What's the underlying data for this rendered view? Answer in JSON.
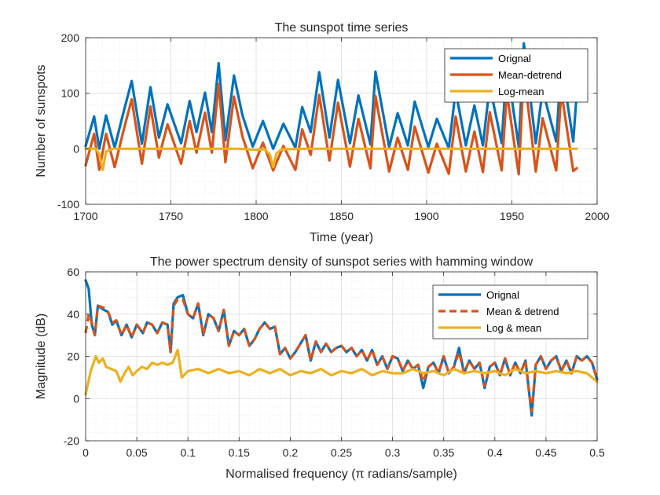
{
  "chart_data": [
    {
      "type": "line",
      "title": "The sunspot time series",
      "xlabel": "Time (year)",
      "ylabel": "Number of sunspots",
      "xlim": [
        1700,
        2000
      ],
      "ylim": [
        -100,
        200
      ],
      "xticks": [
        1700,
        1750,
        1800,
        1850,
        1900,
        1950,
        2000
      ],
      "yticks": [
        -100,
        0,
        100,
        200
      ],
      "xtick_labels": [
        "1700",
        "1750",
        "1800",
        "1850",
        "1900",
        "1950",
        "2000"
      ],
      "ytick_labels": [
        "-100",
        "0",
        "100",
        "200"
      ],
      "grid": true,
      "minor_grid": true,
      "legend_position": "top-right",
      "series": [
        {
          "name": "Orignal",
          "color": "#0072BD",
          "x": [
            1700,
            1705,
            1708,
            1712,
            1717,
            1722,
            1727,
            1733,
            1738,
            1743,
            1748,
            1752,
            1756,
            1761,
            1765,
            1770,
            1774,
            1778,
            1782,
            1787,
            1792,
            1798,
            1804,
            1810,
            1816,
            1823,
            1827,
            1832,
            1837,
            1843,
            1848,
            1855,
            1860,
            1867,
            1870,
            1878,
            1883,
            1889,
            1893,
            1901,
            1906,
            1913,
            1917,
            1923,
            1928,
            1933,
            1937,
            1944,
            1947,
            1954,
            1957,
            1964,
            1968,
            1976,
            1979,
            1986,
            1988
          ],
          "y": [
            5,
            58,
            0,
            60,
            2,
            63,
            122,
            9,
            111,
            20,
            80,
            45,
            10,
            86,
            30,
            101,
            30,
            154,
            15,
            132,
            60,
            4,
            50,
            0,
            45,
            2,
            75,
            30,
            138,
            20,
            124,
            10,
            96,
            8,
            139,
            3,
            64,
            6,
            85,
            3,
            54,
            1,
            104,
            6,
            78,
            6,
            114,
            10,
            151,
            4,
            190,
            10,
            106,
            13,
            155,
            13,
            100
          ]
        },
        {
          "name": "Mean-detrend",
          "color": "#D95319",
          "x": [
            1700,
            1705,
            1708,
            1712,
            1717,
            1722,
            1727,
            1733,
            1738,
            1743,
            1748,
            1752,
            1756,
            1761,
            1765,
            1770,
            1774,
            1778,
            1782,
            1787,
            1792,
            1798,
            1804,
            1810,
            1816,
            1823,
            1827,
            1832,
            1837,
            1843,
            1848,
            1855,
            1860,
            1867,
            1870,
            1878,
            1883,
            1889,
            1893,
            1901,
            1906,
            1913,
            1917,
            1923,
            1928,
            1933,
            1937,
            1944,
            1947,
            1954,
            1957,
            1964,
            1968,
            1976,
            1979,
            1986,
            1988
          ],
          "y": [
            -30,
            27,
            -38,
            27,
            -33,
            30,
            89,
            -27,
            76,
            -16,
            44,
            9,
            -27,
            50,
            -7,
            65,
            -7,
            117,
            -24,
            94,
            22,
            -35,
            11,
            -39,
            5,
            -38,
            35,
            -11,
            97,
            -21,
            83,
            -32,
            54,
            -35,
            95,
            -41,
            20,
            -38,
            40,
            -43,
            9,
            -45,
            58,
            -41,
            31,
            -42,
            66,
            -39,
            102,
            -46,
            140,
            -41,
            55,
            -39,
            103,
            -40,
            -35
          ]
        },
        {
          "name": "Log-mean",
          "color": "#EDB120",
          "x": [
            1700,
            1706,
            1708,
            1710,
            1712,
            1716,
            1720,
            1760,
            1790,
            1800,
            1805,
            1808,
            1810,
            1812,
            1815,
            1830,
            1900,
            1950,
            1988
          ],
          "y": [
            0,
            0,
            -10,
            -38,
            -5,
            0,
            0,
            0,
            0,
            -2,
            -1,
            -10,
            -33,
            -8,
            -1,
            0,
            0,
            0,
            0
          ]
        }
      ]
    },
    {
      "type": "line",
      "title": "The power spectrum density of sunspot series with hamming window",
      "xlabel": "Normalised frequency (π radians/sample)",
      "ylabel": "Magnitude (dB)",
      "xlim": [
        0,
        0.5
      ],
      "ylim": [
        -20,
        60
      ],
      "xticks": [
        0,
        0.05,
        0.1,
        0.15,
        0.2,
        0.25,
        0.3,
        0.35,
        0.4,
        0.45,
        0.5
      ],
      "yticks": [
        -20,
        0,
        20,
        40,
        60
      ],
      "xtick_labels": [
        "0",
        "0.05",
        "0.1",
        "0.15",
        "0.2",
        "0.25",
        "0.3",
        "0.35",
        "0.4",
        "0.45",
        "0.5"
      ],
      "ytick_labels": [
        "-20",
        "0",
        "20",
        "40",
        "60"
      ],
      "grid": true,
      "minor_grid": true,
      "legend_position": "top-right",
      "series": [
        {
          "name": "Orignal",
          "color": "#0072BD",
          "x": [
            0,
            0.003,
            0.006,
            0.009,
            0.012,
            0.018,
            0.022,
            0.026,
            0.03,
            0.035,
            0.04,
            0.045,
            0.05,
            0.056,
            0.06,
            0.065,
            0.07,
            0.075,
            0.08,
            0.083,
            0.086,
            0.09,
            0.095,
            0.1,
            0.105,
            0.11,
            0.115,
            0.12,
            0.125,
            0.13,
            0.135,
            0.14,
            0.145,
            0.15,
            0.155,
            0.16,
            0.165,
            0.17,
            0.175,
            0.18,
            0.185,
            0.19,
            0.195,
            0.2,
            0.205,
            0.21,
            0.215,
            0.22,
            0.225,
            0.23,
            0.235,
            0.24,
            0.245,
            0.25,
            0.255,
            0.26,
            0.265,
            0.27,
            0.275,
            0.28,
            0.285,
            0.29,
            0.295,
            0.3,
            0.305,
            0.31,
            0.315,
            0.32,
            0.325,
            0.33,
            0.335,
            0.34,
            0.345,
            0.35,
            0.355,
            0.36,
            0.365,
            0.37,
            0.375,
            0.38,
            0.385,
            0.39,
            0.395,
            0.4,
            0.405,
            0.41,
            0.415,
            0.42,
            0.425,
            0.43,
            0.433,
            0.436,
            0.44,
            0.445,
            0.45,
            0.455,
            0.46,
            0.465,
            0.47,
            0.475,
            0.48,
            0.485,
            0.49,
            0.495,
            0.5
          ],
          "y": [
            56,
            52,
            35,
            30,
            44,
            42,
            41,
            35,
            37,
            30,
            35,
            29,
            35,
            31,
            36,
            35,
            31,
            36,
            35,
            22,
            45,
            48,
            49,
            40,
            38,
            45,
            30,
            40,
            38,
            32,
            42,
            25,
            32,
            30,
            33,
            25,
            28,
            33,
            36,
            33,
            34,
            21,
            24,
            19,
            22,
            26,
            30,
            18,
            27,
            22,
            26,
            22,
            24,
            25,
            22,
            24,
            20,
            23,
            18,
            23,
            16,
            20,
            14,
            20,
            19,
            13,
            18,
            14,
            16,
            5,
            15,
            17,
            12,
            20,
            12,
            15,
            24,
            12,
            18,
            14,
            17,
            5,
            15,
            17,
            11,
            19,
            11,
            17,
            12,
            18,
            5,
            -8,
            16,
            20,
            14,
            18,
            20,
            13,
            18,
            12,
            20,
            18,
            20,
            17,
            9
          ]
        },
        {
          "name": "Mean & detrend",
          "color": "#D95319",
          "x": [
            0,
            0.003,
            0.006,
            0.009,
            0.012,
            0.018,
            0.022,
            0.026,
            0.03,
            0.035,
            0.04,
            0.045,
            0.05,
            0.056,
            0.06,
            0.065,
            0.07,
            0.075,
            0.08,
            0.083,
            0.086,
            0.09,
            0.095,
            0.1,
            0.105,
            0.11,
            0.115,
            0.12,
            0.125,
            0.13,
            0.135,
            0.14,
            0.145,
            0.15,
            0.155,
            0.16,
            0.165,
            0.17,
            0.175,
            0.18,
            0.185,
            0.19,
            0.195,
            0.2,
            0.205,
            0.21,
            0.215,
            0.22,
            0.225,
            0.23,
            0.235,
            0.24,
            0.245,
            0.25,
            0.255,
            0.26,
            0.265,
            0.27,
            0.275,
            0.28,
            0.285,
            0.29,
            0.295,
            0.3,
            0.305,
            0.31,
            0.315,
            0.32,
            0.325,
            0.33,
            0.335,
            0.34,
            0.345,
            0.35,
            0.355,
            0.36,
            0.365,
            0.37,
            0.375,
            0.38,
            0.385,
            0.39,
            0.395,
            0.4,
            0.405,
            0.41,
            0.415,
            0.42,
            0.425,
            0.43,
            0.433,
            0.436,
            0.44,
            0.445,
            0.45,
            0.455,
            0.46,
            0.465,
            0.47,
            0.475,
            0.48,
            0.485,
            0.49,
            0.495,
            0.5
          ],
          "y": [
            31,
            40,
            36,
            30,
            44,
            43,
            41,
            36,
            37,
            30,
            35,
            29,
            35,
            31,
            36,
            35,
            31,
            36,
            35,
            22,
            44,
            47,
            47,
            40,
            38,
            45,
            30,
            40,
            38,
            32,
            42,
            25,
            32,
            30,
            33,
            25,
            28,
            33,
            36,
            33,
            34,
            21,
            24,
            19,
            22,
            26,
            30,
            18,
            27,
            22,
            26,
            22,
            24,
            25,
            22,
            24,
            20,
            23,
            18,
            23,
            16,
            20,
            14,
            20,
            19,
            13,
            18,
            14,
            16,
            8,
            15,
            17,
            12,
            20,
            12,
            15,
            22,
            12,
            18,
            14,
            17,
            6,
            15,
            17,
            11,
            19,
            11,
            17,
            12,
            18,
            5,
            -6,
            16,
            20,
            14,
            18,
            20,
            13,
            18,
            12,
            20,
            18,
            20,
            17,
            9
          ]
        },
        {
          "name": "Log & mean",
          "color": "#EDB120",
          "x": [
            0,
            0.005,
            0.01,
            0.013,
            0.017,
            0.02,
            0.025,
            0.03,
            0.034,
            0.038,
            0.042,
            0.046,
            0.05,
            0.055,
            0.06,
            0.065,
            0.07,
            0.075,
            0.08,
            0.085,
            0.09,
            0.094,
            0.1,
            0.11,
            0.12,
            0.13,
            0.14,
            0.15,
            0.16,
            0.17,
            0.18,
            0.19,
            0.2,
            0.21,
            0.22,
            0.23,
            0.24,
            0.25,
            0.26,
            0.27,
            0.28,
            0.29,
            0.3,
            0.31,
            0.32,
            0.33,
            0.34,
            0.35,
            0.36,
            0.37,
            0.38,
            0.39,
            0.4,
            0.41,
            0.42,
            0.43,
            0.44,
            0.45,
            0.46,
            0.47,
            0.48,
            0.49,
            0.5
          ],
          "y": [
            2,
            13,
            20,
            17,
            19,
            15,
            14,
            13,
            8,
            12,
            15,
            11,
            13,
            15,
            14,
            17,
            16,
            17,
            16,
            17,
            23,
            10,
            13,
            14,
            12,
            14,
            12,
            13,
            11,
            14,
            12,
            14,
            11,
            13,
            12,
            14,
            11,
            13,
            12,
            14,
            11,
            13,
            12,
            12,
            14,
            12,
            13,
            11,
            14,
            12,
            13,
            12,
            13,
            11,
            14,
            12,
            13,
            12,
            13,
            12,
            13,
            12,
            8
          ]
        }
      ]
    }
  ]
}
